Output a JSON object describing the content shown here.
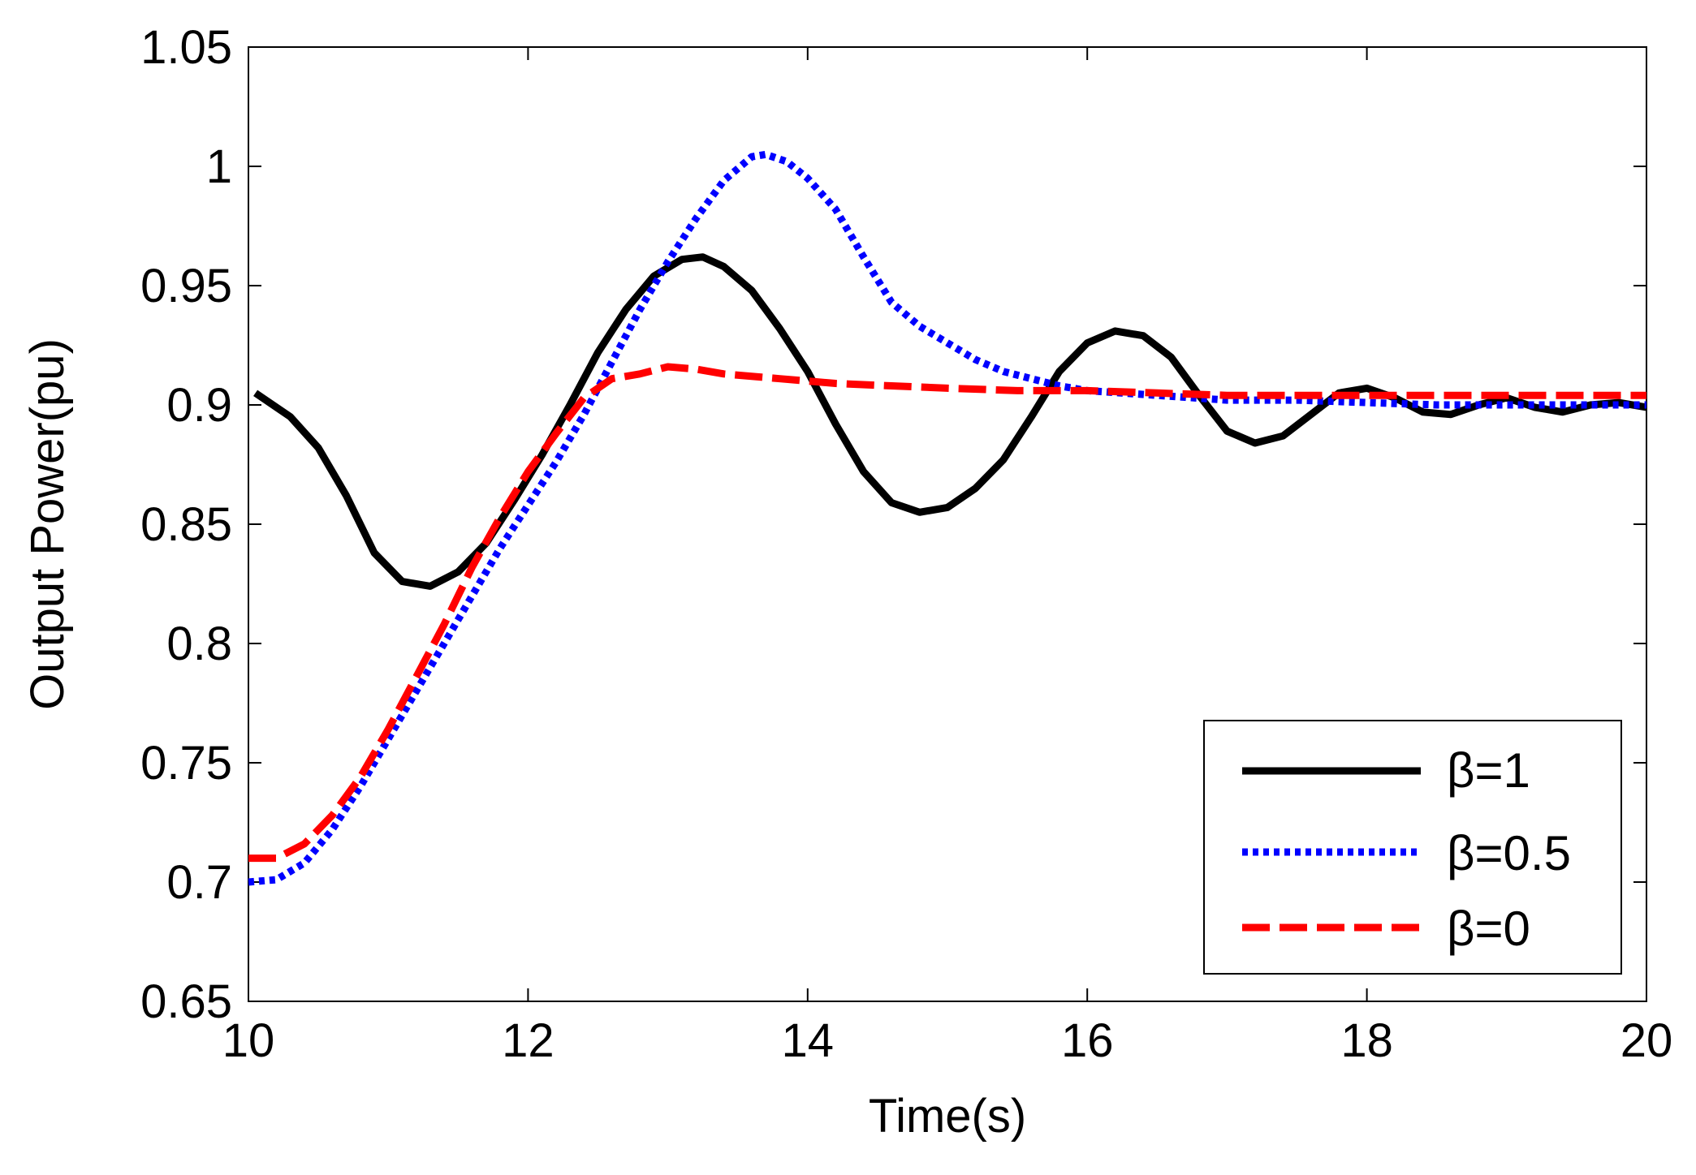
{
  "chart_data": {
    "type": "line",
    "title": "",
    "xlabel": "Time(s)",
    "ylabel": "Output Power(pu)",
    "xlim": [
      10,
      20
    ],
    "ylim": [
      0.65,
      1.05
    ],
    "xticks": [
      10,
      12,
      14,
      16,
      18,
      20
    ],
    "xtick_labels": [
      "10",
      "12",
      "14",
      "16",
      "18",
      "20"
    ],
    "yticks": [
      0.65,
      0.7,
      0.75,
      0.8,
      0.85,
      0.9,
      0.95,
      1.0,
      1.05
    ],
    "ytick_labels": [
      "0.65",
      "0.7",
      "0.75",
      "0.8",
      "0.85",
      "0.9",
      "0.95",
      "1",
      "1.05"
    ],
    "grid": false,
    "legend_position": "bottom-right",
    "series": [
      {
        "name": "β=1",
        "color": "#000000",
        "style": "solid",
        "points": [
          [
            10.05,
            0.905
          ],
          [
            10.3,
            0.895
          ],
          [
            10.5,
            0.882
          ],
          [
            10.7,
            0.862
          ],
          [
            10.9,
            0.838
          ],
          [
            11.1,
            0.826
          ],
          [
            11.3,
            0.824
          ],
          [
            11.5,
            0.83
          ],
          [
            11.7,
            0.842
          ],
          [
            11.9,
            0.86
          ],
          [
            12.1,
            0.879
          ],
          [
            12.3,
            0.9
          ],
          [
            12.5,
            0.922
          ],
          [
            12.7,
            0.94
          ],
          [
            12.9,
            0.954
          ],
          [
            13.1,
            0.961
          ],
          [
            13.25,
            0.962
          ],
          [
            13.4,
            0.958
          ],
          [
            13.6,
            0.948
          ],
          [
            13.8,
            0.932
          ],
          [
            14.0,
            0.914
          ],
          [
            14.2,
            0.892
          ],
          [
            14.4,
            0.872
          ],
          [
            14.6,
            0.859
          ],
          [
            14.8,
            0.855
          ],
          [
            15.0,
            0.857
          ],
          [
            15.2,
            0.865
          ],
          [
            15.4,
            0.877
          ],
          [
            15.6,
            0.895
          ],
          [
            15.8,
            0.914
          ],
          [
            16.0,
            0.926
          ],
          [
            16.2,
            0.931
          ],
          [
            16.4,
            0.929
          ],
          [
            16.6,
            0.92
          ],
          [
            16.8,
            0.904
          ],
          [
            17.0,
            0.889
          ],
          [
            17.2,
            0.884
          ],
          [
            17.4,
            0.887
          ],
          [
            17.6,
            0.896
          ],
          [
            17.8,
            0.905
          ],
          [
            18.0,
            0.907
          ],
          [
            18.2,
            0.903
          ],
          [
            18.4,
            0.897
          ],
          [
            18.6,
            0.896
          ],
          [
            18.8,
            0.9
          ],
          [
            19.0,
            0.903
          ],
          [
            19.2,
            0.899
          ],
          [
            19.4,
            0.897
          ],
          [
            19.6,
            0.9
          ],
          [
            19.8,
            0.901
          ],
          [
            20.0,
            0.899
          ]
        ]
      },
      {
        "name": "β=0.5",
        "color": "#0000ff",
        "style": "dotted",
        "points": [
          [
            10.0,
            0.7
          ],
          [
            10.2,
            0.701
          ],
          [
            10.4,
            0.708
          ],
          [
            10.6,
            0.722
          ],
          [
            10.8,
            0.74
          ],
          [
            11.0,
            0.76
          ],
          [
            11.2,
            0.78
          ],
          [
            11.4,
            0.8
          ],
          [
            11.6,
            0.82
          ],
          [
            11.8,
            0.84
          ],
          [
            12.0,
            0.858
          ],
          [
            12.2,
            0.876
          ],
          [
            12.4,
            0.896
          ],
          [
            12.6,
            0.918
          ],
          [
            12.8,
            0.94
          ],
          [
            13.0,
            0.96
          ],
          [
            13.2,
            0.978
          ],
          [
            13.4,
            0.994
          ],
          [
            13.6,
            1.004
          ],
          [
            13.7,
            1.005
          ],
          [
            13.85,
            1.002
          ],
          [
            14.0,
            0.995
          ],
          [
            14.2,
            0.982
          ],
          [
            14.4,
            0.962
          ],
          [
            14.6,
            0.943
          ],
          [
            14.8,
            0.933
          ],
          [
            15.0,
            0.926
          ],
          [
            15.2,
            0.919
          ],
          [
            15.4,
            0.914
          ],
          [
            15.6,
            0.911
          ],
          [
            15.8,
            0.908
          ],
          [
            16.0,
            0.906
          ],
          [
            16.5,
            0.904
          ],
          [
            17.0,
            0.902
          ],
          [
            17.5,
            0.902
          ],
          [
            18.0,
            0.901
          ],
          [
            18.5,
            0.9
          ],
          [
            19.0,
            0.9
          ],
          [
            19.5,
            0.9
          ],
          [
            20.0,
            0.9
          ]
        ]
      },
      {
        "name": "β=0",
        "color": "#ff0000",
        "style": "dashed",
        "points": [
          [
            10.0,
            0.71
          ],
          [
            10.2,
            0.71
          ],
          [
            10.4,
            0.716
          ],
          [
            10.6,
            0.728
          ],
          [
            10.8,
            0.744
          ],
          [
            11.0,
            0.764
          ],
          [
            11.2,
            0.786
          ],
          [
            11.4,
            0.808
          ],
          [
            11.6,
            0.832
          ],
          [
            11.8,
            0.853
          ],
          [
            12.0,
            0.872
          ],
          [
            12.2,
            0.888
          ],
          [
            12.4,
            0.903
          ],
          [
            12.6,
            0.911
          ],
          [
            12.8,
            0.913
          ],
          [
            13.0,
            0.916
          ],
          [
            13.2,
            0.915
          ],
          [
            13.4,
            0.913
          ],
          [
            13.8,
            0.911
          ],
          [
            14.2,
            0.909
          ],
          [
            14.6,
            0.908
          ],
          [
            15.0,
            0.907
          ],
          [
            15.5,
            0.906
          ],
          [
            16.0,
            0.906
          ],
          [
            16.5,
            0.905
          ],
          [
            17.0,
            0.904
          ],
          [
            17.5,
            0.904
          ],
          [
            18.0,
            0.904
          ],
          [
            18.5,
            0.904
          ],
          [
            19.0,
            0.904
          ],
          [
            19.5,
            0.904
          ],
          [
            20.0,
            0.904
          ]
        ]
      }
    ]
  }
}
